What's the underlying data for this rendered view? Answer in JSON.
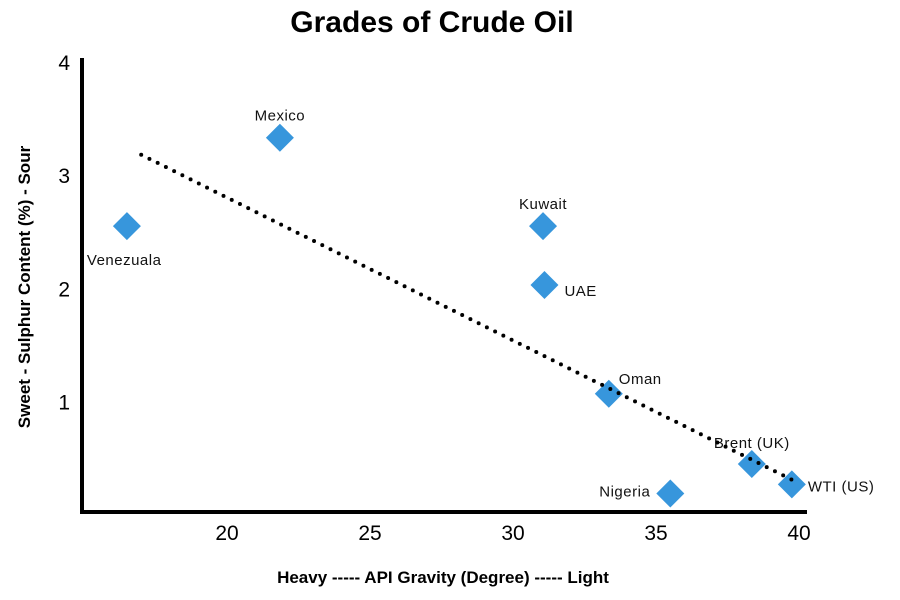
{
  "chart_data": {
    "type": "scatter",
    "title": "Grades of Crude Oil",
    "xlabel": "Heavy ----- API Gravity (Degree) ----- Light",
    "ylabel": "Sweet - Sulphur Content (%) - Sour",
    "xlim": [
      15,
      40.3
    ],
    "ylim": [
      0,
      4.03
    ],
    "xticks": [
      "20",
      "25",
      "30",
      "35",
      "40"
    ],
    "yticks": [
      "1",
      "2",
      "3",
      "4"
    ],
    "grid": false,
    "marker_color": "#3796dc",
    "points": [
      {
        "label": "Venezuala",
        "x": 16.5,
        "y": 2.55
      },
      {
        "label": "Mexico",
        "x": 21.85,
        "y": 3.33
      },
      {
        "label": "Kuwait",
        "x": 31.05,
        "y": 2.55
      },
      {
        "label": "UAE",
        "x": 31.1,
        "y": 2.03
      },
      {
        "label": "Oman",
        "x": 33.35,
        "y": 1.07
      },
      {
        "label": "Nigeria",
        "x": 35.5,
        "y": 0.19
      },
      {
        "label": "Brent (UK)",
        "x": 38.35,
        "y": 0.45
      },
      {
        "label": "WTI (US)",
        "x": 39.75,
        "y": 0.27
      }
    ],
    "trendline": {
      "style": "dotted",
      "x": [
        17,
        40
      ],
      "y": [
        3.18,
        0.28
      ]
    }
  }
}
